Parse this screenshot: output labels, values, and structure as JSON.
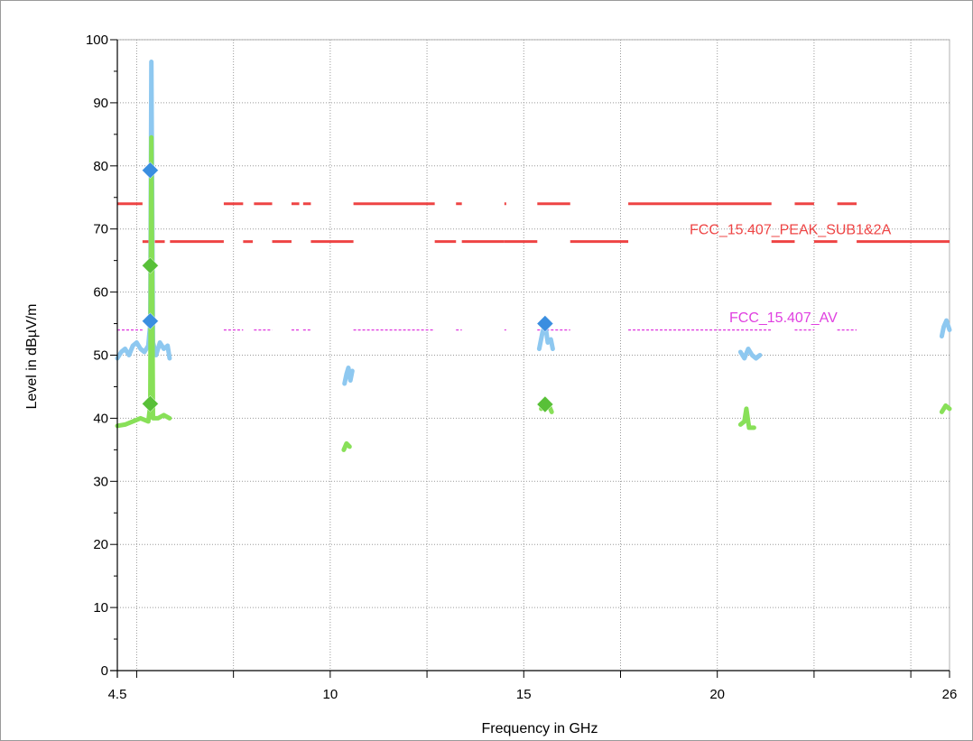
{
  "chart_data": {
    "type": "line",
    "title": "",
    "xlabel": "Frequency in GHz",
    "ylabel": "Level in dBµV/m",
    "xlim": [
      4.5,
      26
    ],
    "ylim": [
      0,
      100
    ],
    "x_ticks": [
      4.5,
      10,
      15,
      20,
      26
    ],
    "x_tick_labels": [
      "4.5",
      "10",
      "15",
      "20",
      "26"
    ],
    "x_minor_ticks": [
      5,
      7.5,
      12.5,
      17.5,
      22.5,
      25
    ],
    "y_ticks": [
      0,
      10,
      20,
      30,
      40,
      50,
      60,
      70,
      80,
      90,
      100
    ],
    "y_tick_labels": [
      "0",
      "10",
      "20",
      "30",
      "40",
      "50",
      "60",
      "70",
      "80",
      "90",
      "100"
    ],
    "grid": true,
    "limit_lines": [
      {
        "name": "FCC_15.407_PEAK_SUB1&2A",
        "color": "#ee4444",
        "segments": [
          {
            "x": [
              4.5,
              5.15
            ],
            "y": 74
          },
          {
            "x": [
              5.15,
              5.35
            ],
            "y": 68
          },
          {
            "x": [
              5.47,
              5.725
            ],
            "y": 68
          },
          {
            "x": [
              5.86,
              7.25
            ],
            "y": 68
          },
          {
            "x": [
              7.25,
              7.75
            ],
            "y": 74
          },
          {
            "x": [
              7.75,
              8.0
            ],
            "y": 68
          },
          {
            "x": [
              8.03,
              8.5
            ],
            "y": 74
          },
          {
            "x": [
              8.5,
              9.0
            ],
            "y": 68
          },
          {
            "x": [
              9.0,
              9.2
            ],
            "y": 74
          },
          {
            "x": [
              9.3,
              9.5
            ],
            "y": 74
          },
          {
            "x": [
              9.5,
              10.6
            ],
            "y": 68
          },
          {
            "x": [
              10.6,
              12.7
            ],
            "y": 74
          },
          {
            "x": [
              12.7,
              13.25
            ],
            "y": 68
          },
          {
            "x": [
              13.25,
              13.4
            ],
            "y": 74
          },
          {
            "x": [
              13.4,
              14.5
            ],
            "y": 68
          },
          {
            "x": [
              14.5,
              14.5
            ],
            "y": 74
          },
          {
            "x": [
              14.5,
              15.35
            ],
            "y": 68
          },
          {
            "x": [
              15.35,
              16.2
            ],
            "y": 74
          },
          {
            "x": [
              16.2,
              17.7
            ],
            "y": 68
          },
          {
            "x": [
              17.7,
              21.4
            ],
            "y": 74
          },
          {
            "x": [
              21.4,
              22.0
            ],
            "y": 68
          },
          {
            "x": [
              22.0,
              22.5
            ],
            "y": 74
          },
          {
            "x": [
              22.5,
              23.1
            ],
            "y": 68
          },
          {
            "x": [
              23.1,
              23.6
            ],
            "y": 74
          },
          {
            "x": [
              23.6,
              26
            ],
            "y": 68
          }
        ]
      },
      {
        "name": "FCC_15.407_AV",
        "color": "#e040e0",
        "segments": [
          {
            "x": [
              4.5,
              5.15
            ],
            "y": 54
          },
          {
            "x": [
              7.25,
              7.75
            ],
            "y": 54
          },
          {
            "x": [
              8.03,
              8.5
            ],
            "y": 54
          },
          {
            "x": [
              9.0,
              9.2
            ],
            "y": 54
          },
          {
            "x": [
              9.3,
              9.5
            ],
            "y": 54
          },
          {
            "x": [
              10.6,
              12.7
            ],
            "y": 54
          },
          {
            "x": [
              13.25,
              13.4
            ],
            "y": 54
          },
          {
            "x": [
              14.5,
              14.5
            ],
            "y": 54
          },
          {
            "x": [
              15.35,
              16.2
            ],
            "y": 54
          },
          {
            "x": [
              17.7,
              21.4
            ],
            "y": 54
          },
          {
            "x": [
              22.0,
              22.5
            ],
            "y": 54
          },
          {
            "x": [
              23.1,
              23.6
            ],
            "y": 54
          }
        ]
      }
    ],
    "series": [
      {
        "role": "peak trace",
        "color": "#8ec8f0",
        "segments": [
          [
            [
              4.5,
              49.5
            ],
            [
              4.6,
              50.5
            ],
            [
              4.7,
              51
            ],
            [
              4.8,
              50
            ],
            [
              4.9,
              51.5
            ],
            [
              5.0,
              52
            ],
            [
              5.1,
              51
            ],
            [
              5.2,
              50.5
            ],
            [
              5.3,
              51.5
            ],
            [
              5.35,
              55
            ],
            [
              5.38,
              96.5
            ],
            [
              5.42,
              52
            ],
            [
              5.5,
              50
            ],
            [
              5.6,
              52
            ],
            [
              5.7,
              51
            ],
            [
              5.8,
              51.5
            ],
            [
              5.85,
              49.5
            ]
          ],
          [
            [
              10.37,
              45.5
            ],
            [
              10.42,
              47
            ],
            [
              10.47,
              48
            ],
            [
              10.52,
              46
            ],
            [
              10.57,
              47.5
            ]
          ],
          [
            [
              15.4,
              51
            ],
            [
              15.48,
              53.5
            ],
            [
              15.55,
              55
            ],
            [
              15.62,
              52
            ],
            [
              15.7,
              52.5
            ],
            [
              15.75,
              51
            ]
          ],
          [
            [
              20.6,
              50.5
            ],
            [
              20.7,
              49.5
            ],
            [
              20.8,
              51
            ],
            [
              20.9,
              50
            ],
            [
              21.0,
              49.5
            ],
            [
              21.1,
              50
            ]
          ],
          [
            [
              25.8,
              53
            ],
            [
              25.85,
              54.5
            ],
            [
              25.92,
              55.5
            ],
            [
              26.0,
              54
            ]
          ]
        ]
      },
      {
        "role": "average trace",
        "color": "#88e058",
        "segments": [
          [
            [
              4.5,
              38.8
            ],
            [
              4.7,
              39
            ],
            [
              4.9,
              39.5
            ],
            [
              5.1,
              40
            ],
            [
              5.3,
              39.5
            ],
            [
              5.35,
              42
            ],
            [
              5.38,
              84.5
            ],
            [
              5.42,
              40
            ],
            [
              5.55,
              40
            ],
            [
              5.7,
              40.5
            ],
            [
              5.85,
              40
            ]
          ],
          [
            [
              10.35,
              35
            ],
            [
              10.42,
              36
            ],
            [
              10.5,
              35.5
            ]
          ],
          [
            [
              15.45,
              41.5
            ],
            [
              15.55,
              43
            ],
            [
              15.65,
              42
            ],
            [
              15.72,
              41
            ]
          ],
          [
            [
              20.6,
              39
            ],
            [
              20.7,
              39.5
            ],
            [
              20.75,
              41.5
            ],
            [
              20.82,
              38.5
            ],
            [
              20.95,
              38.5
            ]
          ],
          [
            [
              25.8,
              41
            ],
            [
              25.9,
              42
            ],
            [
              26.0,
              41.5
            ]
          ]
        ]
      }
    ],
    "markers": [
      {
        "x": 5.35,
        "y": 79.3,
        "color": "#3a8ee0"
      },
      {
        "x": 5.35,
        "y": 55.4,
        "color": "#3a8ee0"
      },
      {
        "x": 15.55,
        "y": 55.0,
        "color": "#3a8ee0"
      },
      {
        "x": 5.35,
        "y": 64.2,
        "color": "#58c038"
      },
      {
        "x": 5.35,
        "y": 42.3,
        "color": "#58c038"
      },
      {
        "x": 15.55,
        "y": 42.2,
        "color": "#58c038"
      }
    ]
  }
}
